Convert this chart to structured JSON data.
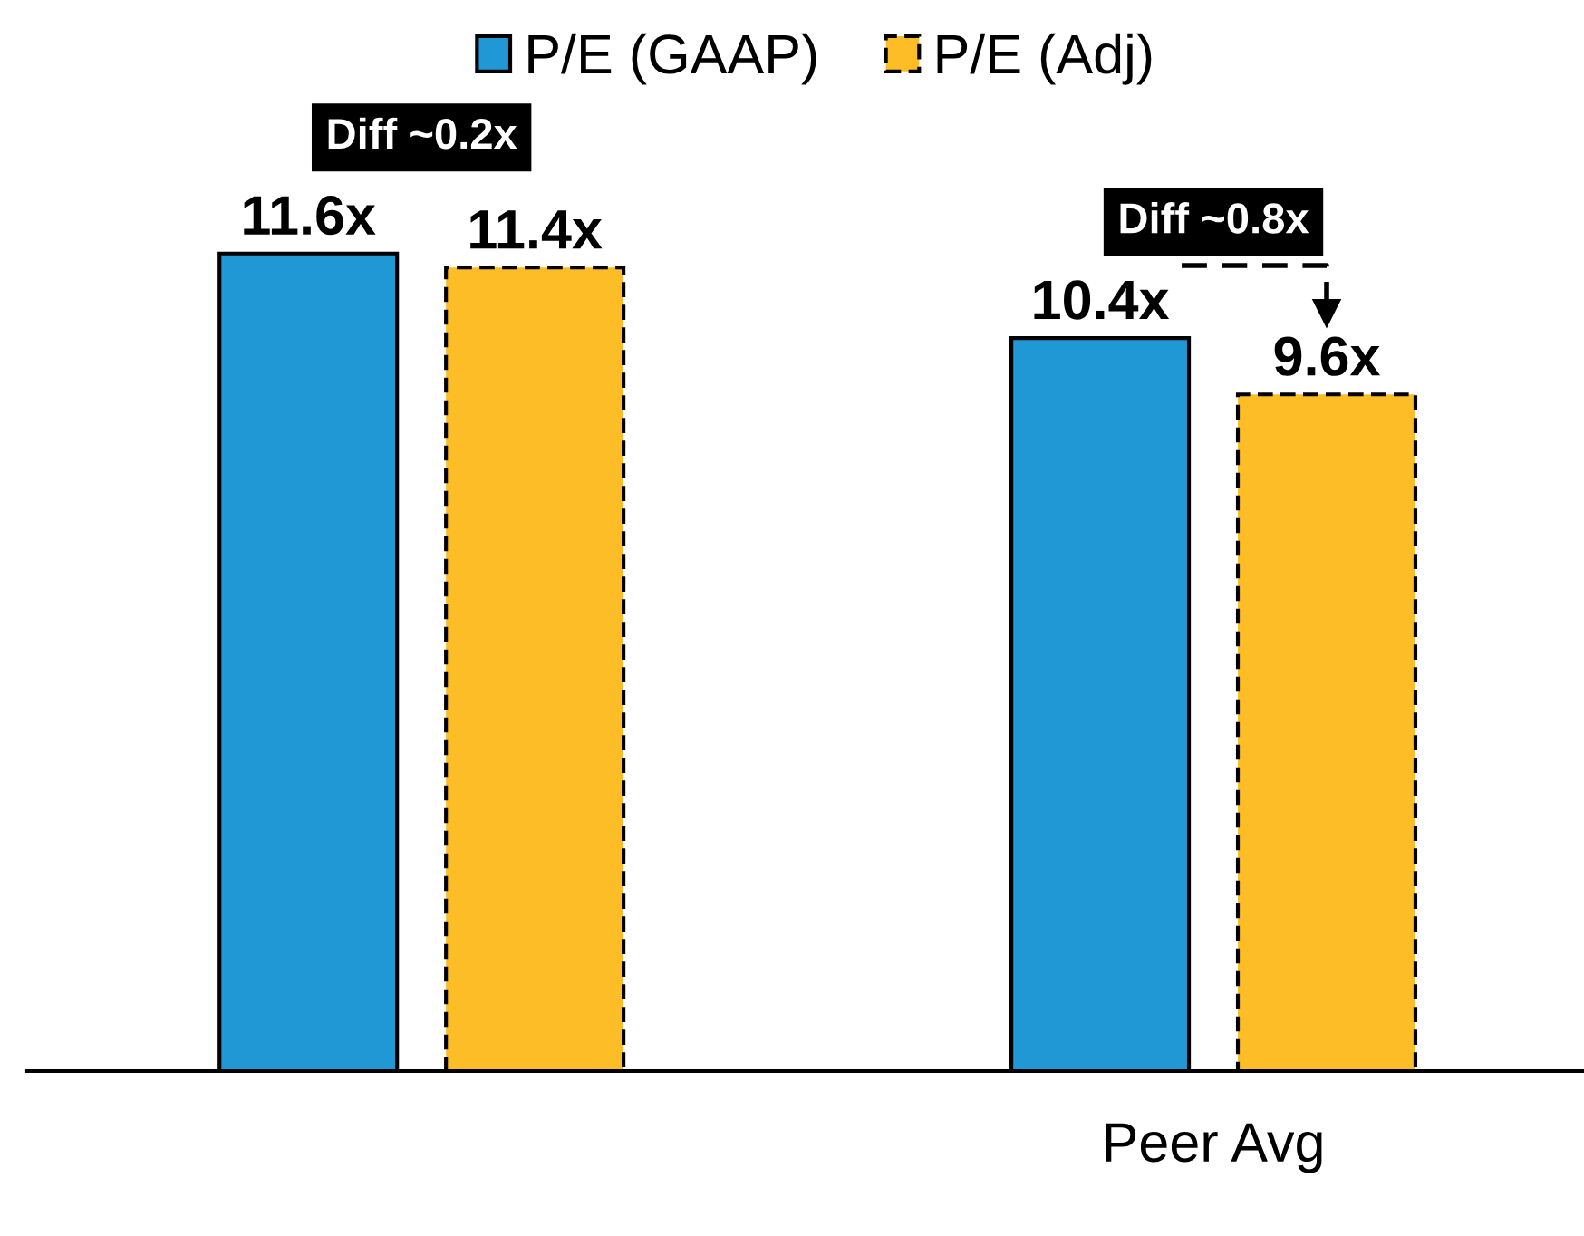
{
  "chart_data": {
    "type": "bar",
    "categories": [
      null,
      "Peer Avg"
    ],
    "series": [
      {
        "name": "P/E (GAAP)",
        "color": "#1f98d5",
        "values": [
          11.6,
          10.4
        ],
        "value_labels": [
          "11.6x",
          "10.4x"
        ],
        "line_style": "solid"
      },
      {
        "name": "P/E (Adj)",
        "color": "#fdbd26",
        "values": [
          11.4,
          9.6
        ],
        "value_labels": [
          "11.4x",
          "9.6x"
        ],
        "line_style": "dashed"
      }
    ],
    "annotations": [
      "Diff ~0.2x",
      "Diff ~0.8x"
    ],
    "legend": "top"
  }
}
